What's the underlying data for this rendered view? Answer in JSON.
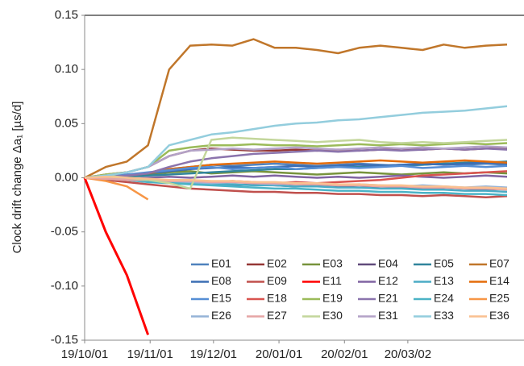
{
  "chart_data": {
    "type": "line",
    "y_label": "Clock drift change Δa₁ [µs/d]",
    "x": [
      "2019-10-01",
      "2019-10-11",
      "2019-10-21",
      "2019-10-31",
      "2019-11-10",
      "2019-11-20",
      "2019-11-30",
      "2019-12-10",
      "2019-12-20",
      "2019-12-30",
      "2020-01-09",
      "2020-01-19",
      "2020-01-29",
      "2020-02-08",
      "2020-02-18",
      "2020-02-28",
      "2020-03-09",
      "2020-03-19",
      "2020-03-29",
      "2020-04-08",
      "2020-04-18"
    ],
    "xlim": [
      "2019-10-01",
      "2020-04-26"
    ],
    "xticks": [
      {
        "value": "2019-10-01",
        "label": "19/10/01"
      },
      {
        "value": "2019-11-01",
        "label": "19/11/01"
      },
      {
        "value": "2019-12-01",
        "label": "19/12/01"
      },
      {
        "value": "2020-01-01",
        "label": "20/01/01"
      },
      {
        "value": "2020-02-01",
        "label": "20/02/01"
      },
      {
        "value": "2020-03-02",
        "label": "20/03/02"
      }
    ],
    "ylim": [
      -0.15,
      0.15
    ],
    "yticks": [
      {
        "value": -0.15,
        "label": "-0.15"
      },
      {
        "value": -0.1,
        "label": "-0.10"
      },
      {
        "value": -0.05,
        "label": "-0.05"
      },
      {
        "value": 0,
        "label": "0.00"
      },
      {
        "value": 0.05,
        "label": "0.05"
      },
      {
        "value": 0.1,
        "label": "0.10"
      },
      {
        "value": 0.15,
        "label": "0.15"
      }
    ],
    "legend": "lower right",
    "series": [
      {
        "name": "E01",
        "color": "#4f81bd",
        "values": [
          0,
          0.002,
          0.003,
          0.004,
          0.008,
          0.01,
          0.012,
          0.011,
          0.012,
          0.013,
          0.012,
          0.011,
          0.012,
          0.013,
          0.012,
          0.011,
          0.012,
          0.013,
          0.012,
          0.013,
          0.012
        ]
      },
      {
        "name": "E02",
        "color": "#953735",
        "values": [
          0,
          0.003,
          0.005,
          0.01,
          0.02,
          0.025,
          0.027,
          0.026,
          0.025,
          0.025,
          0.026,
          0.025,
          0.026,
          0.025,
          0.026,
          0.027,
          0.026,
          0.027,
          0.026,
          0.027,
          0.027
        ]
      },
      {
        "name": "E03",
        "color": "#77933c",
        "values": [
          0,
          0.001,
          0.002,
          0.003,
          0.005,
          0.006,
          0.004,
          0.005,
          0.006,
          0.005,
          0.004,
          0.003,
          0.004,
          0.005,
          0.004,
          0.003,
          0.004,
          0.005,
          0.004,
          0.005,
          0.004
        ]
      },
      {
        "name": "E04",
        "color": "#604a7b",
        "values": [
          0,
          -0.001,
          -0.002,
          -0.003,
          -0.004,
          -0.005,
          -0.006,
          -0.007,
          -0.006,
          -0.007,
          -0.008,
          -0.007,
          -0.008,
          -0.009,
          -0.008,
          -0.009,
          -0.01,
          -0.009,
          -0.01,
          -0.011,
          -0.01
        ]
      },
      {
        "name": "E05",
        "color": "#31859c",
        "values": [
          0,
          0,
          0.001,
          0.002,
          0.003,
          0.004,
          0.005,
          0.006,
          0.007,
          0.008,
          0.008,
          0.009,
          0.01,
          0.01,
          0.011,
          0.012,
          0.012,
          0.013,
          0.014,
          0.014,
          0.015
        ]
      },
      {
        "name": "E07",
        "color": "#c0762a",
        "values": [
          0,
          0.01,
          0.015,
          0.03,
          0.1,
          0.122,
          0.123,
          0.122,
          0.128,
          0.12,
          0.12,
          0.118,
          0.115,
          0.12,
          0.122,
          0.12,
          0.118,
          0.123,
          0.12,
          0.122,
          0.123
        ]
      },
      {
        "name": "E08",
        "color": "#3c6eb4",
        "values": [
          0,
          0.001,
          0.002,
          0.004,
          0.006,
          0.008,
          0.009,
          0.01,
          0.009,
          0.01,
          0.011,
          0.01,
          0.011,
          0.012,
          0.011,
          0.012,
          0.013,
          0.012,
          0.013,
          0.014,
          0.013
        ]
      },
      {
        "name": "E09",
        "color": "#c0504d",
        "values": [
          0,
          -0.002,
          -0.004,
          -0.006,
          -0.008,
          -0.01,
          -0.011,
          -0.012,
          -0.013,
          -0.013,
          -0.014,
          -0.014,
          -0.015,
          -0.015,
          -0.016,
          -0.016,
          -0.017,
          -0.016,
          -0.017,
          -0.018,
          -0.017
        ]
      },
      {
        "name": "E11",
        "color": "#ff0000",
        "values": [
          0,
          -0.05,
          -0.09,
          -0.145,
          null,
          null,
          null,
          null,
          null,
          null,
          null,
          null,
          null,
          null,
          null,
          null,
          null,
          null,
          null,
          null,
          null
        ]
      },
      {
        "name": "E12",
        "color": "#8064a2",
        "values": [
          0,
          0,
          -0.001,
          0,
          0.001,
          0,
          0.001,
          0.002,
          0.001,
          0.002,
          0.001,
          0,
          0.001,
          0,
          0.001,
          0.002,
          0.001,
          0,
          0.001,
          0.002,
          0.001
        ]
      },
      {
        "name": "E13",
        "color": "#4bacc6",
        "values": [
          0,
          -0.001,
          -0.002,
          -0.003,
          -0.004,
          -0.005,
          -0.006,
          -0.006,
          -0.007,
          -0.007,
          -0.008,
          -0.008,
          -0.009,
          -0.009,
          -0.01,
          -0.01,
          -0.011,
          -0.011,
          -0.012,
          -0.012,
          -0.013
        ]
      },
      {
        "name": "E14",
        "color": "#e46c0a",
        "values": [
          0,
          0.001,
          0.002,
          0.004,
          0.008,
          0.01,
          0.012,
          0.013,
          0.014,
          0.015,
          0.014,
          0.013,
          0.014,
          0.015,
          0.016,
          0.015,
          0.014,
          0.015,
          0.016,
          0.015,
          0.014
        ]
      },
      {
        "name": "E15",
        "color": "#558ed5",
        "values": [
          0,
          0.001,
          0.003,
          0.005,
          0.007,
          0.009,
          0.01,
          0.008,
          0.009,
          0.01,
          0.008,
          0.009,
          0.01,
          0.009,
          0.01,
          0.011,
          0.009,
          0.01,
          0.011,
          0.01,
          0.011
        ]
      },
      {
        "name": "E18",
        "color": "#d9534f",
        "values": [
          0,
          -0.001,
          -0.002,
          -0.003,
          -0.002,
          -0.003,
          -0.004,
          -0.003,
          -0.004,
          -0.005,
          -0.004,
          -0.005,
          -0.004,
          -0.003,
          -0.002,
          0,
          0.002,
          0.003,
          0.004,
          0.005,
          0.006
        ]
      },
      {
        "name": "E19",
        "color": "#9bbb59",
        "values": [
          0,
          0.003,
          0.005,
          0.01,
          0.025,
          0.028,
          0.03,
          0.03,
          0.031,
          0.03,
          0.03,
          0.029,
          0.03,
          0.031,
          0.03,
          0.031,
          0.03,
          0.031,
          0.032,
          0.031,
          0.032
        ]
      },
      {
        "name": "E21",
        "color": "#8b74ad",
        "values": [
          0,
          0.001,
          0.002,
          0.004,
          0.01,
          0.015,
          0.018,
          0.02,
          0.022,
          0.023,
          0.024,
          0.025,
          0.024,
          0.025,
          0.026,
          0.025,
          0.026,
          0.027,
          0.026,
          0.027,
          0.026
        ]
      },
      {
        "name": "E24",
        "color": "#4bb3c6",
        "values": [
          0,
          -0.001,
          -0.002,
          -0.004,
          -0.005,
          -0.006,
          -0.007,
          -0.008,
          -0.009,
          -0.01,
          -0.01,
          -0.011,
          -0.012,
          -0.012,
          -0.013,
          -0.013,
          -0.014,
          -0.014,
          -0.015,
          -0.015,
          -0.016
        ]
      },
      {
        "name": "E25",
        "color": "#f79646",
        "values": [
          0,
          -0.003,
          -0.008,
          -0.02,
          null,
          null,
          null,
          null,
          null,
          null,
          null,
          null,
          null,
          null,
          null,
          null,
          null,
          null,
          null,
          null,
          null
        ]
      },
      {
        "name": "E26",
        "color": "#95b3d7",
        "values": [
          0,
          0,
          -0.001,
          -0.002,
          -0.003,
          -0.004,
          -0.005,
          -0.004,
          -0.005,
          -0.006,
          -0.005,
          -0.006,
          -0.007,
          -0.006,
          -0.007,
          -0.008,
          -0.007,
          -0.008,
          -0.009,
          -0.008,
          -0.009
        ]
      },
      {
        "name": "E27",
        "color": "#e6a5a5",
        "values": [
          0,
          -0.001,
          -0.002,
          -0.002,
          -0.003,
          -0.003,
          -0.004,
          -0.004,
          -0.005,
          -0.005,
          -0.006,
          -0.006,
          -0.007,
          -0.007,
          -0.008,
          -0.008,
          -0.009,
          -0.009,
          -0.01,
          -0.01,
          -0.011
        ]
      },
      {
        "name": "E30",
        "color": "#c3d69b",
        "values": [
          0,
          0.002,
          0,
          -0.002,
          -0.005,
          -0.01,
          0.035,
          0.037,
          0.036,
          0.035,
          0.034,
          0.033,
          0.034,
          0.035,
          0.033,
          0.032,
          0.033,
          0.032,
          0.033,
          0.034,
          0.035
        ]
      },
      {
        "name": "E31",
        "color": "#b3a2c7",
        "values": [
          0,
          0.002,
          0.005,
          0.01,
          0.02,
          0.025,
          0.026,
          0.027,
          0.026,
          0.027,
          0.028,
          0.027,
          0.026,
          0.027,
          0.028,
          0.027,
          0.028,
          0.027,
          0.028,
          0.029,
          0.028
        ]
      },
      {
        "name": "E33",
        "color": "#93cddd",
        "values": [
          0,
          0.002,
          0.005,
          0.01,
          0.03,
          0.035,
          0.04,
          0.042,
          0.045,
          0.048,
          0.05,
          0.051,
          0.053,
          0.054,
          0.056,
          0.058,
          0.06,
          0.061,
          0.062,
          0.064,
          0.066
        ]
      },
      {
        "name": "E36",
        "color": "#fac090",
        "values": [
          0,
          0.001,
          0,
          -0.001,
          -0.002,
          -0.002,
          -0.003,
          -0.003,
          -0.004,
          -0.004,
          -0.005,
          -0.005,
          -0.006,
          -0.006,
          -0.007,
          -0.007,
          -0.008,
          -0.008,
          -0.009,
          -0.009,
          -0.01
        ]
      }
    ]
  }
}
